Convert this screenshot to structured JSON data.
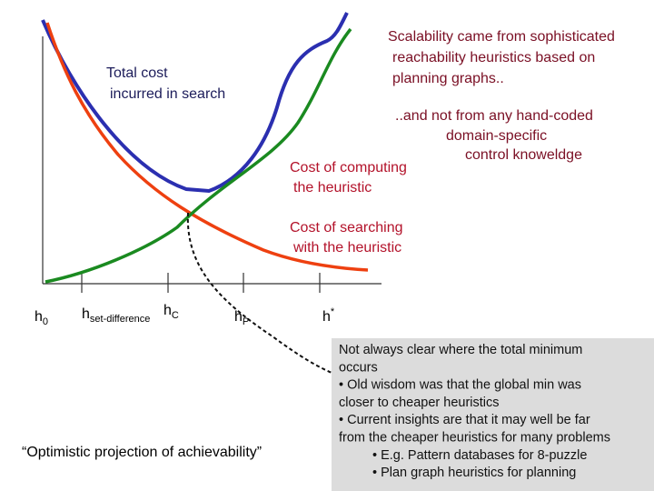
{
  "labels": {
    "total_cost": [
      "Total cost",
      "incurred in search"
    ],
    "scalability": [
      "Scalability came from sophisticated",
      "reachability heuristics based on",
      "planning graphs.."
    ],
    "not_handcoded": [
      "..and not from any hand-coded",
      "domain-specific",
      "control knoweldge"
    ],
    "cost_computing": [
      "Cost of computing",
      "the heuristic"
    ],
    "cost_searching": [
      "Cost of searching",
      "with the heuristic"
    ],
    "optimistic": "“Optimistic projection of achievability”"
  },
  "axis_labels": [
    {
      "base": "h",
      "sub": "0"
    },
    {
      "base": "h",
      "sub": "set-difference"
    },
    {
      "base": "h",
      "sub": "C"
    },
    {
      "base": "h",
      "sub": "P"
    },
    {
      "base": "h",
      "sup": "*"
    }
  ],
  "note_box": [
    "Not always clear where the total minimum",
    "occurs",
    "•  Old wisdom was that the global min was",
    "closer to cheaper heuristics",
    "• Current insights are that it may well be far",
    "from the cheaper heuristics for many problems",
    "•  E.g. Pattern databases for 8-puzzle",
    "•   Plan graph heuristics for planning"
  ]
}
